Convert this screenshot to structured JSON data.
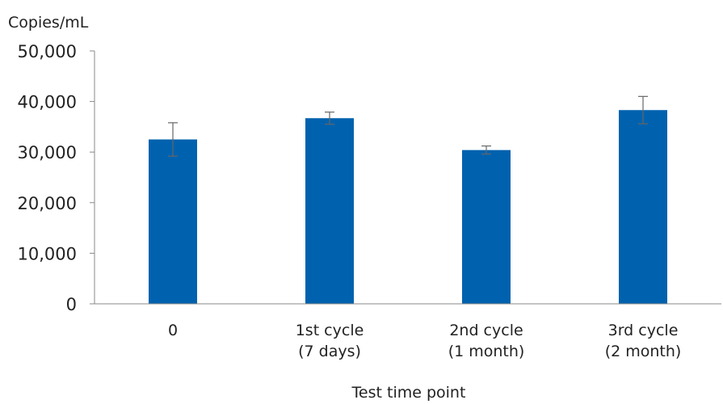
{
  "chart_data": {
    "type": "bar",
    "title": "",
    "ylabel": "Copies/mL",
    "xlabel": "Test time point",
    "ylim": [
      0,
      50000
    ],
    "yticks": [
      0,
      10000,
      20000,
      30000,
      40000,
      50000
    ],
    "ytick_labels": [
      "0",
      "10,000",
      "20,000",
      "30,000",
      "40,000",
      "50,000"
    ],
    "categories": [
      [
        "0"
      ],
      [
        "1st cycle",
        "(7 days)"
      ],
      [
        "2nd cycle",
        "(1 month)"
      ],
      [
        "3rd cycle",
        "(2 month)"
      ]
    ],
    "values": [
      32500,
      36700,
      30400,
      38300
    ],
    "error": [
      3300,
      1200,
      800,
      2700
    ],
    "grid": false,
    "colors": {
      "bar": "#0062ae",
      "axis": "#888888",
      "error": "#666666"
    }
  }
}
